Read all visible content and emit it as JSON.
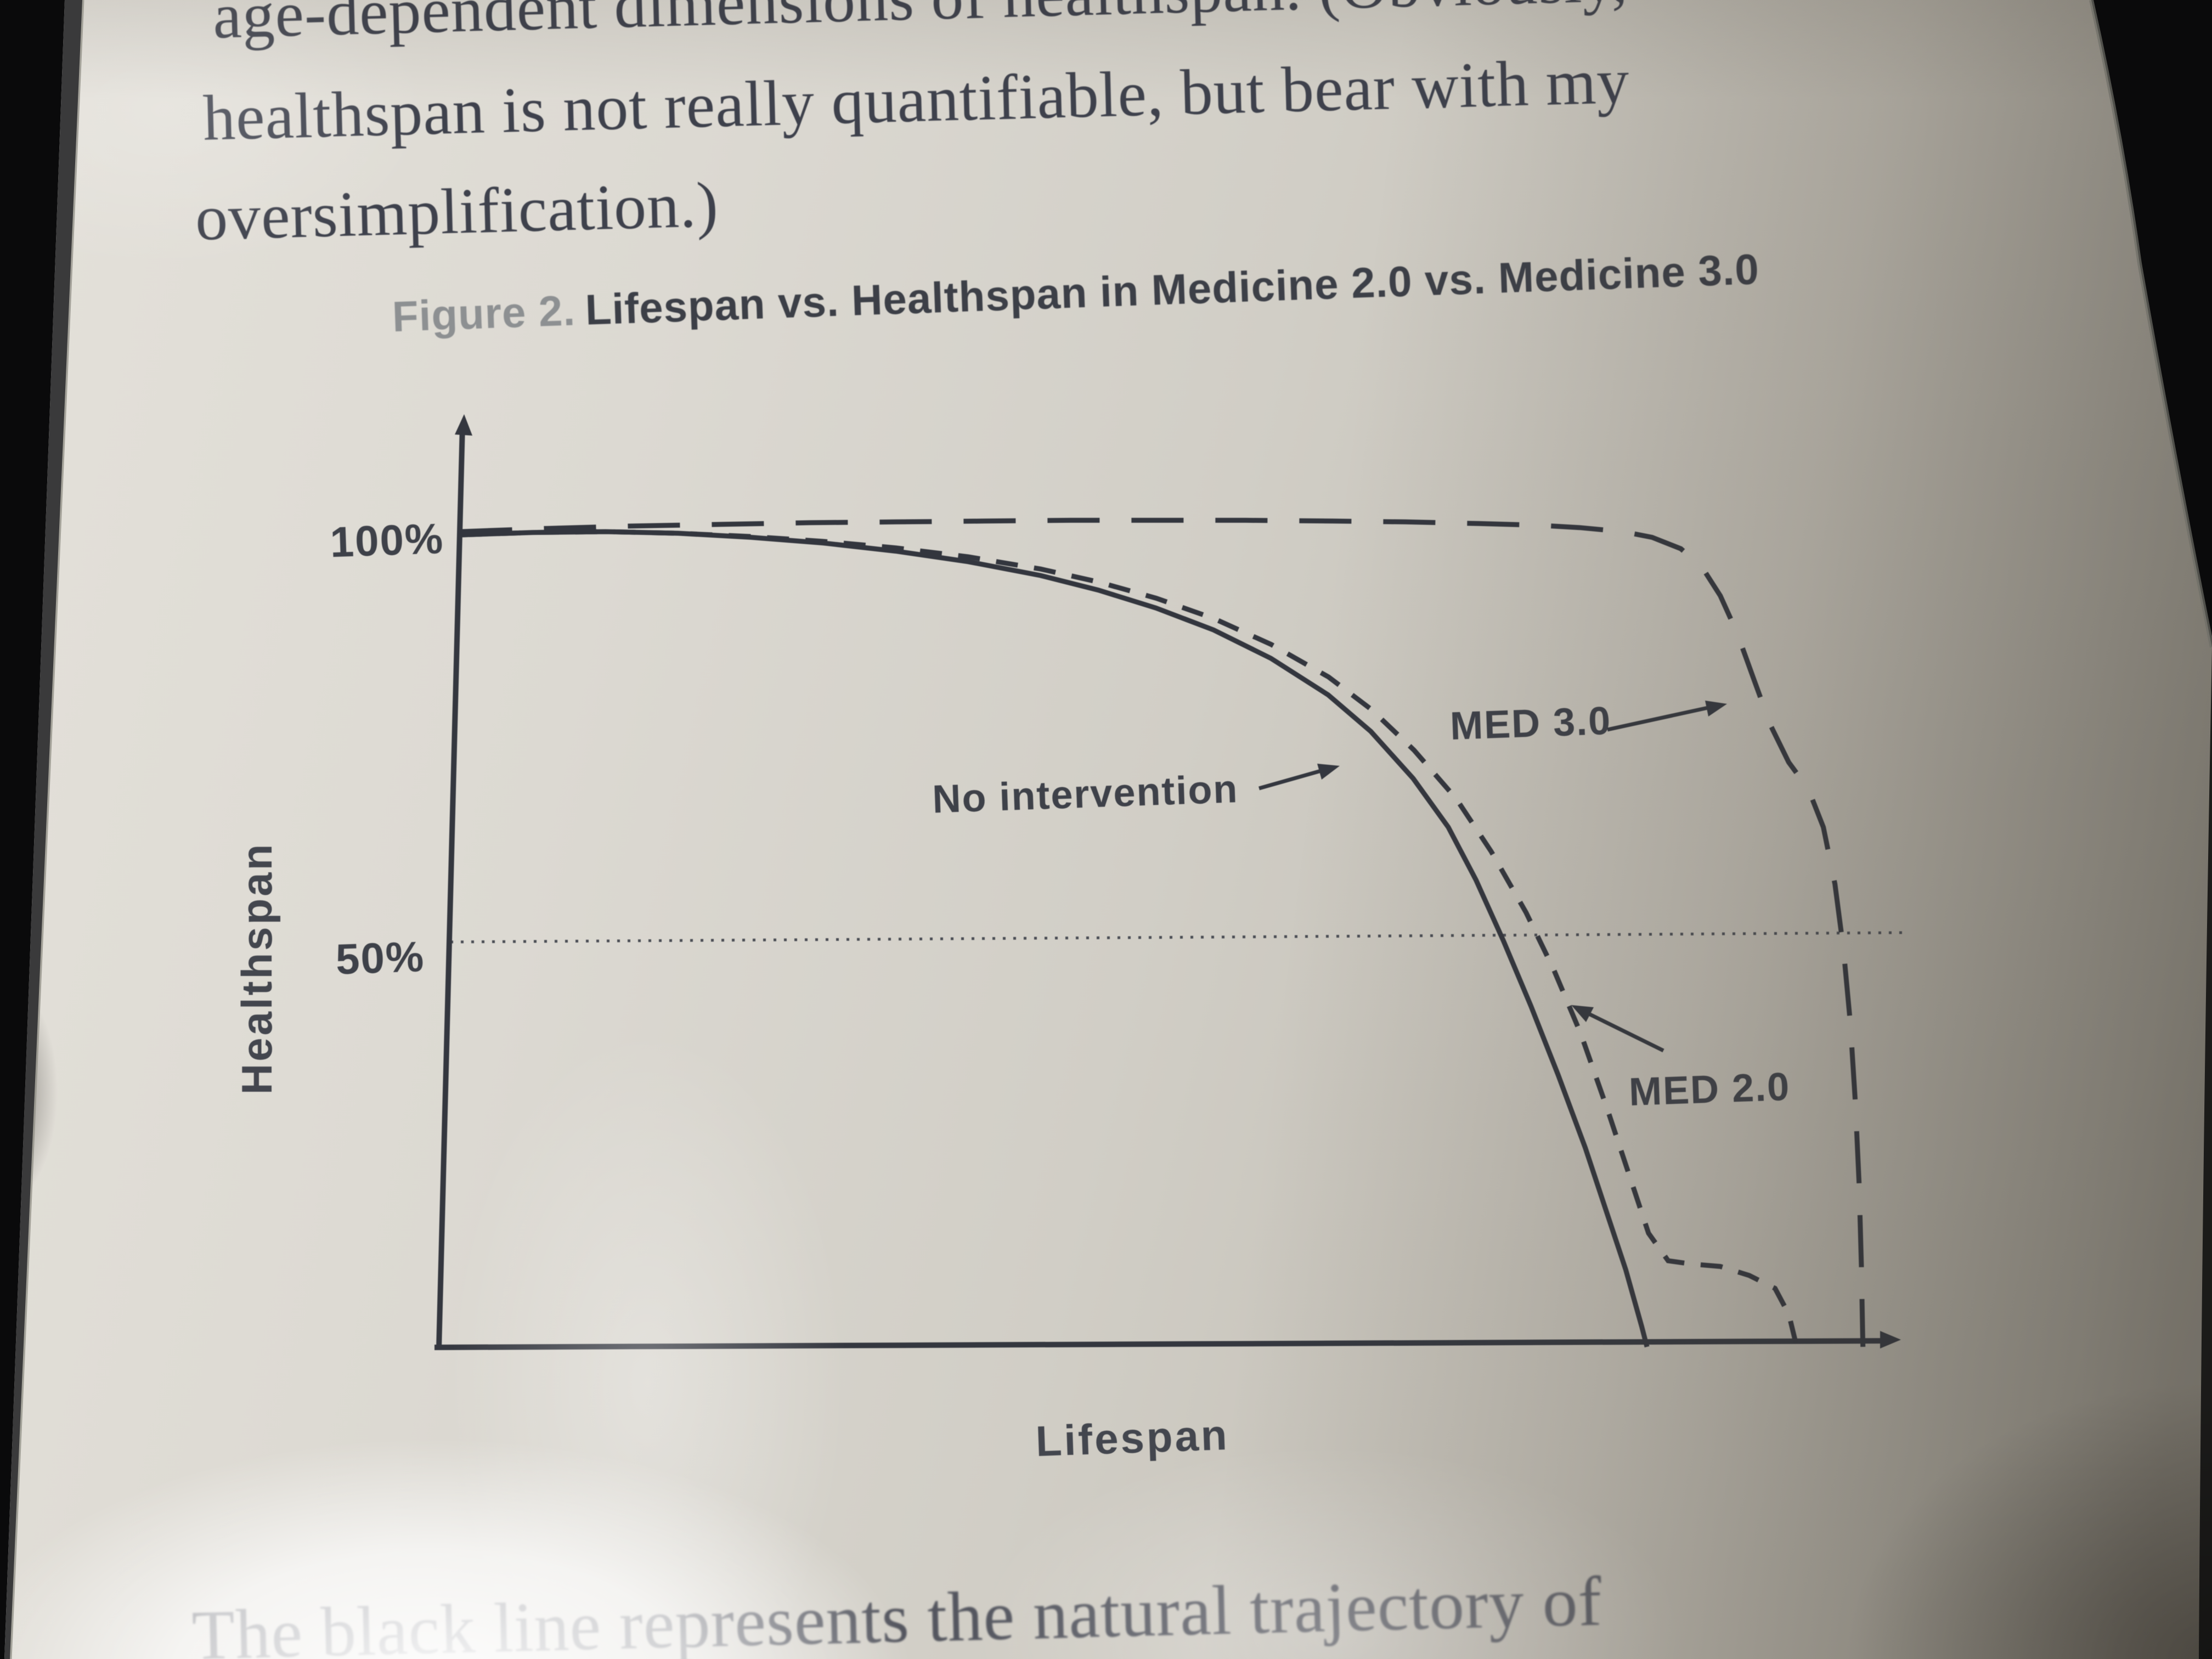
{
  "page": {
    "top_paragraph": {
      "line1": "age-dependent dimensions of healthspan. (Obviously,",
      "line2": "healthspan is not really quantifiable, but bear with my",
      "line3": "oversimplification.)"
    },
    "figure_caption": {
      "prefix": "Figure 2.",
      "title": "Lifespan vs. Healthspan in Medicine 2.0 vs. Medicine 3.0"
    },
    "bottom_paragraph": "The black line represents the natural trajectory of"
  },
  "chart_data": {
    "type": "line",
    "title": "Figure 2. Lifespan vs. Healthspan in Medicine 2.0 vs. Medicine 3.0",
    "xlabel": "Lifespan",
    "ylabel": "Healthspan",
    "xlim": [
      0,
      100
    ],
    "ylim": [
      0,
      110
    ],
    "ytick_labels": [
      "100%",
      "50%"
    ],
    "ytick_values": [
      100,
      50
    ],
    "grid": "horizontal dotted reference line at 50%",
    "legend_position": "inline annotations with arrows",
    "series": [
      {
        "name": "No intervention",
        "style": "solid",
        "points": [
          [
            0,
            100
          ],
          [
            5,
            100.3
          ],
          [
            10,
            100.4
          ],
          [
            15,
            100.2
          ],
          [
            20,
            99.7
          ],
          [
            25,
            99
          ],
          [
            30,
            98
          ],
          [
            35,
            96.7
          ],
          [
            40,
            95
          ],
          [
            44,
            93.2
          ],
          [
            48,
            91
          ],
          [
            52,
            88.3
          ],
          [
            56,
            84.8
          ],
          [
            60,
            80.3
          ],
          [
            63,
            75.8
          ],
          [
            66,
            70
          ],
          [
            68.5,
            64
          ],
          [
            70.5,
            57.5
          ],
          [
            72.5,
            50
          ],
          [
            74.5,
            42
          ],
          [
            76.5,
            33.5
          ],
          [
            78.5,
            24.5
          ],
          [
            80,
            17
          ],
          [
            81.5,
            9.5
          ],
          [
            82.7,
            2.5
          ],
          [
            83.1,
            0
          ]
        ]
      },
      {
        "name": "MED 2.0",
        "style": "dashed-short",
        "points": [
          [
            0,
            100
          ],
          [
            5,
            100.3
          ],
          [
            10,
            100.4
          ],
          [
            15,
            100.2
          ],
          [
            20,
            99.8
          ],
          [
            25,
            99.2
          ],
          [
            30,
            98.4
          ],
          [
            35,
            97.3
          ],
          [
            40,
            95.8
          ],
          [
            44,
            94.2
          ],
          [
            48,
            92.2
          ],
          [
            52,
            89.7
          ],
          [
            56,
            86.5
          ],
          [
            60,
            82.5
          ],
          [
            63,
            78.5
          ],
          [
            66,
            73.5
          ],
          [
            69,
            67.5
          ],
          [
            71.5,
            61
          ],
          [
            74,
            53.5
          ],
          [
            76,
            46.5
          ],
          [
            78,
            38.5
          ],
          [
            80,
            29
          ],
          [
            81.5,
            21.5
          ],
          [
            83,
            14
          ],
          [
            84.4,
            10.6
          ],
          [
            86,
            10.2
          ],
          [
            88,
            9.9
          ],
          [
            90,
            8.8
          ],
          [
            91.8,
            7.2
          ],
          [
            92.8,
            4
          ],
          [
            93.4,
            0
          ]
        ]
      },
      {
        "name": "MED 3.0",
        "style": "dashed-long",
        "points": [
          [
            0,
            100.4
          ],
          [
            6,
            100.8
          ],
          [
            12,
            101.1
          ],
          [
            18,
            101.3
          ],
          [
            24,
            101.5
          ],
          [
            30,
            101.6
          ],
          [
            36,
            101.7
          ],
          [
            42,
            101.8
          ],
          [
            48,
            101.8
          ],
          [
            54,
            101.8
          ],
          [
            60,
            101.7
          ],
          [
            65,
            101.6
          ],
          [
            70,
            101.4
          ],
          [
            74,
            101.2
          ],
          [
            77,
            100.9
          ],
          [
            80,
            100.4
          ],
          [
            82,
            99.7
          ],
          [
            84,
            98.3
          ],
          [
            85.5,
            96
          ],
          [
            86.8,
            92.5
          ],
          [
            88,
            88
          ],
          [
            89.3,
            82
          ],
          [
            90.5,
            76.5
          ],
          [
            91.8,
            72
          ],
          [
            93.2,
            68.7
          ],
          [
            94.3,
            64
          ],
          [
            95.2,
            57
          ],
          [
            95.9,
            49
          ],
          [
            96.5,
            40
          ],
          [
            97,
            30
          ],
          [
            97.4,
            20
          ],
          [
            97.7,
            10
          ],
          [
            97.9,
            2
          ],
          [
            97.95,
            0
          ]
        ]
      }
    ],
    "annotations": [
      {
        "label": "No intervention",
        "points_to": "solid curve"
      },
      {
        "label": "MED 3.0",
        "points_to": "long-dash curve"
      },
      {
        "label": "MED 2.0",
        "points_to": "short-dash curve"
      }
    ]
  },
  "colors": {
    "page_light": "#e2dfd8",
    "page_dark": "#a49f96",
    "ink": "#3c3f47",
    "caption_prefix_gray": "#8d9092",
    "chart_line": "#33363e",
    "bezel_black": "#0a0a0b"
  }
}
